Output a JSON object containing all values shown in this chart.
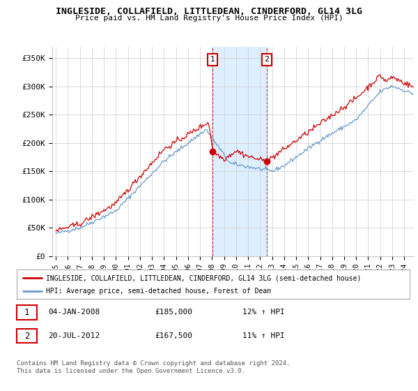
{
  "title": "INGLESIDE, COLLAFIELD, LITTLEDEAN, CINDERFORD, GL14 3LG",
  "subtitle": "Price paid vs. HM Land Registry's House Price Index (HPI)",
  "legend_line1": "INGLESIDE, COLLAFIELD, LITTLEDEAN, CINDERFORD, GL14 3LG (semi-detached house)",
  "legend_line2": "HPI: Average price, semi-detached house, Forest of Dean",
  "footnote": "Contains HM Land Registry data © Crown copyright and database right 2024.\nThis data is licensed under the Open Government Licence v3.0.",
  "annotation1": {
    "label": "1",
    "date": "04-JAN-2008",
    "price": "£185,000",
    "hpi": "12% ↑ HPI"
  },
  "annotation2": {
    "label": "2",
    "date": "20-JUL-2012",
    "price": "£167,500",
    "hpi": "11% ↑ HPI"
  },
  "red_color": "#cc0000",
  "blue_color": "#6699cc",
  "shading_color": "#ddeeff",
  "grid_color": "#cccccc",
  "background_color": "#ffffff",
  "ylim": [
    0,
    370000
  ],
  "yticks": [
    0,
    50000,
    100000,
    150000,
    200000,
    250000,
    300000,
    350000
  ],
  "ytick_labels": [
    "£0",
    "£50K",
    "£100K",
    "£150K",
    "£200K",
    "£250K",
    "£300K",
    "£350K"
  ],
  "marker1_x": 2008.04,
  "marker1_y": 185000,
  "marker2_x": 2012.55,
  "marker2_y": 167500,
  "vline1_x": 2008.04,
  "vline2_x": 2012.55,
  "xmin": 1994.7,
  "xmax": 2024.8
}
